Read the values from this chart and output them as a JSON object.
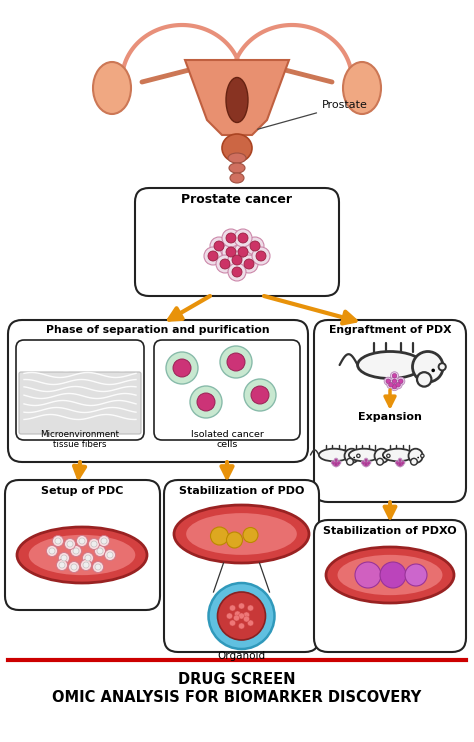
{
  "bg_color": "#ffffff",
  "orange": "#E8920A",
  "box_ec": "#222222",
  "red_line": "#cc0000",
  "title1": "DRUG SCREEN",
  "title2": "OMIC ANALYSIS FOR BIOMARKER DISCOVERY",
  "lbl_prostate": "Prostate",
  "lbl_pc": "Prostate cancer",
  "lbl_phase": "Phase of separation and purification",
  "lbl_pdx": "Engraftment of PDX",
  "lbl_micro": "Microenvironment\ntissue fibers",
  "lbl_iso": "Isolated cancer\ncells",
  "lbl_exp": "Expansion",
  "lbl_pdc": "Setup of PDC",
  "lbl_pdo": "Stabilization of PDO",
  "lbl_pdxo": "Stabilization of PDXO",
  "lbl_org": "Organoid",
  "cell_outer": "#d8ecd8",
  "cell_inner": "#cc4488",
  "cell_outer2": "#e0f0e0",
  "iso_outer": "#d0e8d0",
  "iso_inner": "#cc3377"
}
